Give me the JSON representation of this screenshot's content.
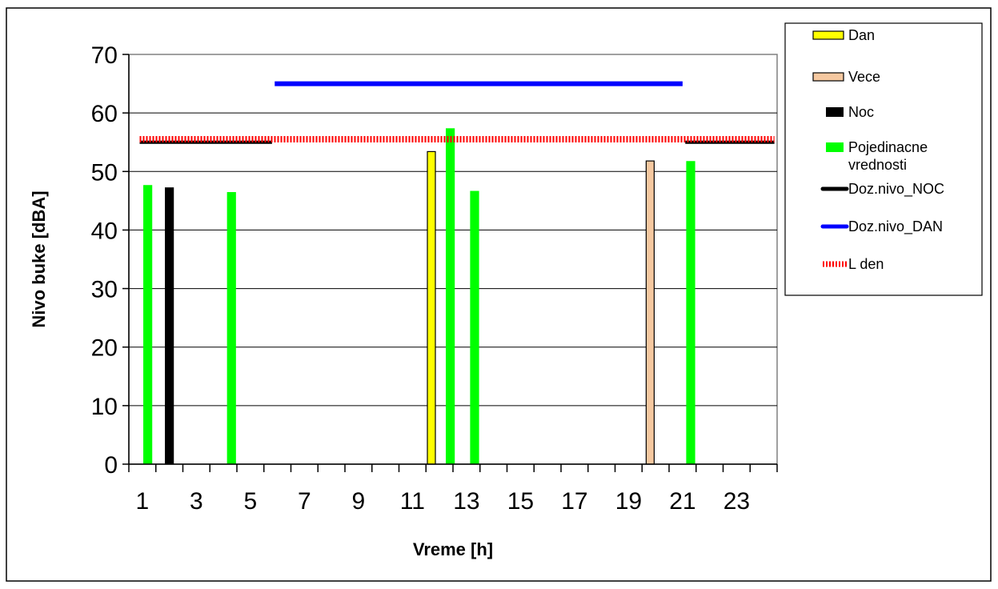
{
  "chart_data": {
    "type": "bar",
    "title": "",
    "xlabel": "Vreme [h]",
    "ylabel": "Nivo buke [dBA]",
    "xlim": [
      0.5,
      24.5
    ],
    "ylim": [
      0,
      70
    ],
    "yticks": [
      0,
      10,
      20,
      30,
      40,
      50,
      60,
      70
    ],
    "xtick_labels": [
      1,
      3,
      5,
      7,
      9,
      11,
      13,
      15,
      17,
      19,
      21,
      23
    ],
    "grid": "horizontal",
    "legend_position": "right",
    "bar_series": [
      {
        "name": "Dan",
        "color": "#ffff00",
        "outline": "#000000",
        "points": [
          {
            "x": 11.7,
            "y": 53.4
          }
        ]
      },
      {
        "name": "Vece",
        "color": "#f5c8a0",
        "outline": "#000000",
        "points": [
          {
            "x": 19.8,
            "y": 51.8
          }
        ]
      },
      {
        "name": "Noc",
        "color": "#000000",
        "outline": "#000000",
        "points": [
          {
            "x": 2.0,
            "y": 47.2
          }
        ]
      },
      {
        "name": "Pojedinacne vrednosti",
        "color": "#00ff00",
        "outline": "#00ff00",
        "points": [
          {
            "x": 1.2,
            "y": 47.6
          },
          {
            "x": 4.3,
            "y": 46.4
          },
          {
            "x": 12.4,
            "y": 57.3
          },
          {
            "x": 13.3,
            "y": 46.6
          },
          {
            "x": 21.3,
            "y": 51.7
          }
        ]
      }
    ],
    "line_series": [
      {
        "name": "Doz.nivo_NOC",
        "color": "#000000",
        "style": "solid",
        "segments": [
          [
            0.9,
            5.8,
            55
          ],
          [
            21.1,
            24.4,
            55
          ]
        ]
      },
      {
        "name": "Doz.nivo_DAN",
        "color": "#0000ff",
        "style": "solid",
        "segments": [
          [
            5.9,
            21.0,
            65
          ]
        ]
      },
      {
        "name": "L den",
        "color": "#ff0000",
        "style": "dotted",
        "segments": [
          [
            0.9,
            24.4,
            55.5
          ]
        ]
      }
    ],
    "legend": [
      {
        "label": "Dan",
        "marker": "box",
        "fill": "#ffff00"
      },
      {
        "label": "Vece",
        "marker": "box",
        "fill": "#f5c8a0"
      },
      {
        "label": "Noc",
        "marker": "box",
        "fill": "#000000"
      },
      {
        "label": "Pojedinacne vrednosti",
        "marker": "box",
        "fill": "#00ff00",
        "lines": [
          "Pojedinacne",
          "vrednosti"
        ]
      },
      {
        "label": "Doz.nivo_NOC",
        "marker": "line",
        "fill": "#000000"
      },
      {
        "label": "Doz.nivo_DAN",
        "marker": "line",
        "fill": "#0000ff"
      },
      {
        "label": "L den",
        "marker": "dotted",
        "fill": "#ff0000"
      }
    ]
  }
}
